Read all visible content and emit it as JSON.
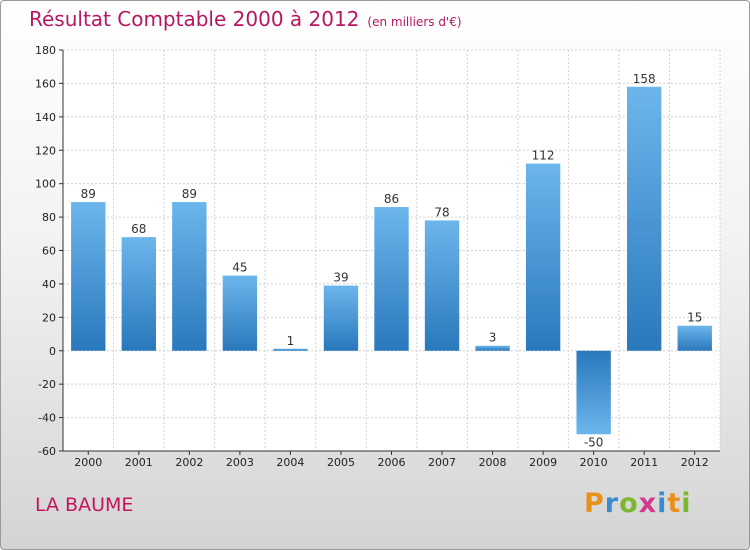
{
  "title": "Résultat Comptable 2000 à 2012",
  "subtitle": "(en milliers d'€)",
  "commune": "LA BAUME",
  "logo": {
    "letters": [
      "P",
      "r",
      "o",
      "x",
      "i",
      "t",
      "i"
    ],
    "colors": [
      "#e8901c",
      "#3a8bd0",
      "#7ab82e",
      "#d23a8e",
      "#3a8bd0",
      "#e8901c",
      "#7ab82e"
    ]
  },
  "colors": {
    "bar_light": "#6cb6ec",
    "bar_dark": "#2a78bc",
    "title": "#b51861"
  },
  "chart_data": {
    "type": "bar",
    "title": "Résultat Comptable 2000 à 2012",
    "ylabel": "(en milliers d'€)",
    "categories": [
      "2000",
      "2001",
      "2002",
      "2003",
      "2004",
      "2005",
      "2006",
      "2007",
      "2008",
      "2009",
      "2010",
      "2011",
      "2012"
    ],
    "values": [
      89,
      68,
      89,
      45,
      1,
      39,
      86,
      78,
      3,
      112,
      -50,
      158,
      15
    ],
    "labels": [
      "89",
      "68",
      "89",
      "45",
      "1",
      "39",
      "86",
      "78",
      "3",
      "112",
      "-50",
      "158",
      "15"
    ],
    "ylim": [
      -60,
      180
    ],
    "yticks": [
      -60,
      -40,
      -20,
      0,
      20,
      40,
      60,
      80,
      100,
      120,
      140,
      160,
      180
    ],
    "grid": true
  }
}
